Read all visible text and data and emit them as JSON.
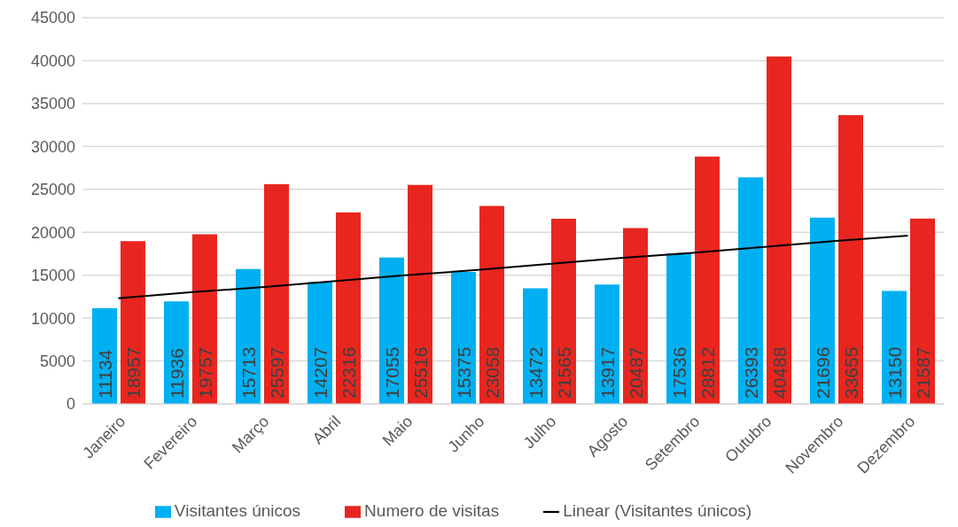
{
  "chart_data": {
    "type": "bar",
    "categories": [
      "Janeiro",
      "Fevereiro",
      "Março",
      "Abril",
      "Maio",
      "Junho",
      "Julho",
      "Agosto",
      "Setembro",
      "Outubro",
      "Novembro",
      "Dezembro"
    ],
    "series": [
      {
        "name": "Visitantes únicos",
        "color": "#00b0f0",
        "values": [
          11134,
          11936,
          15713,
          14207,
          17055,
          15375,
          13472,
          13917,
          17536,
          26393,
          21696,
          13150
        ],
        "value_labels": [
          "11134",
          "11936",
          "15713",
          "14207",
          "17055",
          "15375",
          "13472",
          "13917",
          "17536",
          "26393",
          "21696",
          "13150"
        ]
      },
      {
        "name": "Numero de visitas",
        "color": "#e8261f",
        "values": [
          18957,
          19757,
          25597,
          22316,
          25516,
          23058,
          21565,
          20487,
          28812,
          40488,
          33655,
          21587
        ],
        "value_labels": [
          "18957",
          "19757",
          "25597",
          "22316",
          "25516",
          "23058",
          "21565",
          "20487",
          "28812",
          "40488",
          "33655",
          "21587"
        ]
      },
      {
        "name": "Linear (Visitantes únicos)",
        "type": "line",
        "color": "#000000",
        "values": [
          12300,
          13000,
          13600,
          14300,
          15000,
          15600,
          16300,
          17000,
          17600,
          18300,
          19000,
          19600
        ]
      }
    ],
    "ylim": [
      0,
      45000
    ],
    "yticks": [
      0,
      5000,
      10000,
      15000,
      20000,
      25000,
      30000,
      35000,
      40000,
      45000
    ],
    "grid": "y",
    "legend": "bottom",
    "marker": "none",
    "line_style": "solid"
  }
}
